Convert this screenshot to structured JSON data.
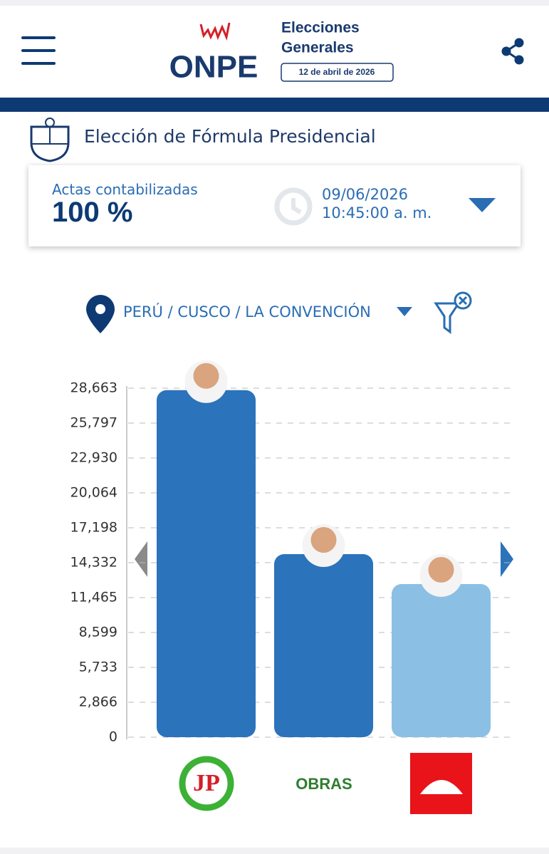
{
  "header": {
    "brand": "ONPE",
    "event_line1": "Elecciones",
    "event_line2": "Generales",
    "event_date": "12 de abril de 2026"
  },
  "election_title": "Elección de Fórmula Presidencial",
  "status": {
    "label": "Actas contabilizadas",
    "value": "100 %",
    "date": "09/06/2026",
    "time": "10:45:00 a. m."
  },
  "location": "PERÚ / CUSCO / LA CONVENCIÓN",
  "chart_data": {
    "type": "bar",
    "categories": [
      "JP",
      "OBRAS",
      null
    ],
    "values": [
      28500,
      15030,
      12580
    ],
    "colors": [
      "#2b73ba",
      "#2b73ba",
      "#8bc0e4"
    ],
    "ylim": [
      0,
      28663
    ],
    "yticks": [
      0,
      {
        "value": 2866,
        "label": "2,866"
      },
      {
        "value": 5733,
        "label": "5,733"
      },
      {
        "value": 8599,
        "label": "8,599"
      },
      {
        "value": 11465,
        "label": "11,465"
      },
      {
        "value": 14332,
        "label": "14,332"
      },
      {
        "value": 17198,
        "label": "17,198"
      },
      {
        "value": 20064,
        "label": "20,064"
      },
      {
        "value": 22930,
        "label": "22,930"
      },
      {
        "value": 25797,
        "label": "25,797"
      },
      {
        "value": 28663,
        "label": "28,663"
      }
    ],
    "grid": true
  }
}
